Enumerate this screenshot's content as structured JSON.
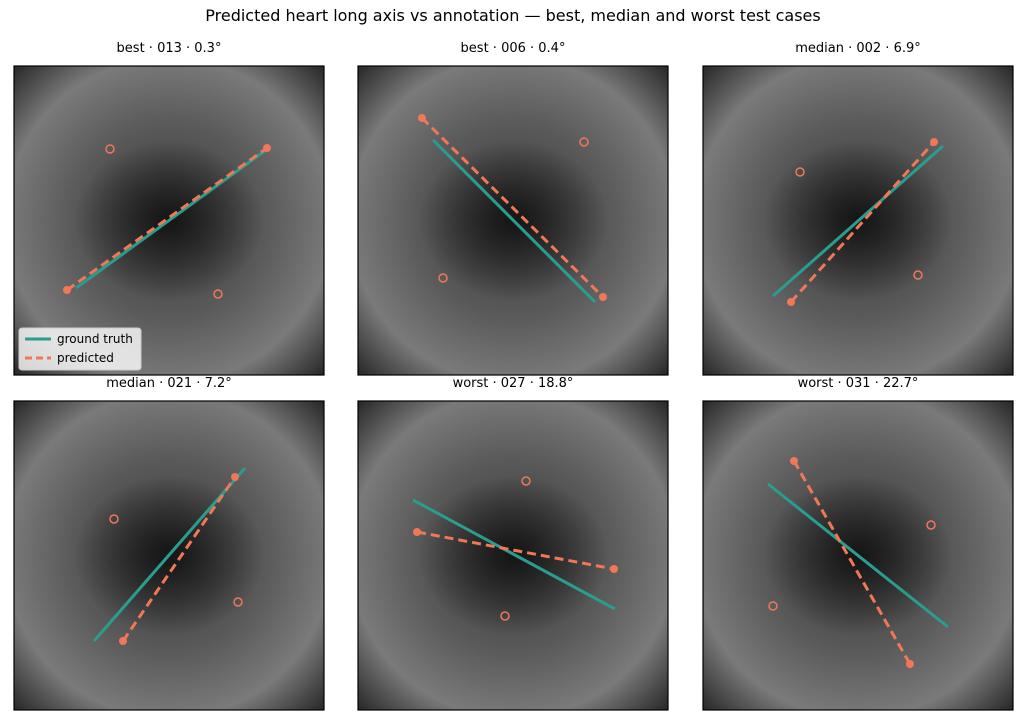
{
  "title": "Predicted heart long axis vs annotation — best, median and worst test cases",
  "panels": [
    {
      "title": "best · 013 · 0.3°"
    },
    {
      "title": "best · 006 · 0.4°"
    },
    {
      "title": "median · 002 · 6.9°"
    },
    {
      "title": "median · 021 · 7.2°"
    },
    {
      "title": "worst · 027 · 18.8°"
    },
    {
      "title": "worst · 031 · 22.7°"
    }
  ],
  "legend": [
    "ground truth",
    "predicted"
  ]
}
